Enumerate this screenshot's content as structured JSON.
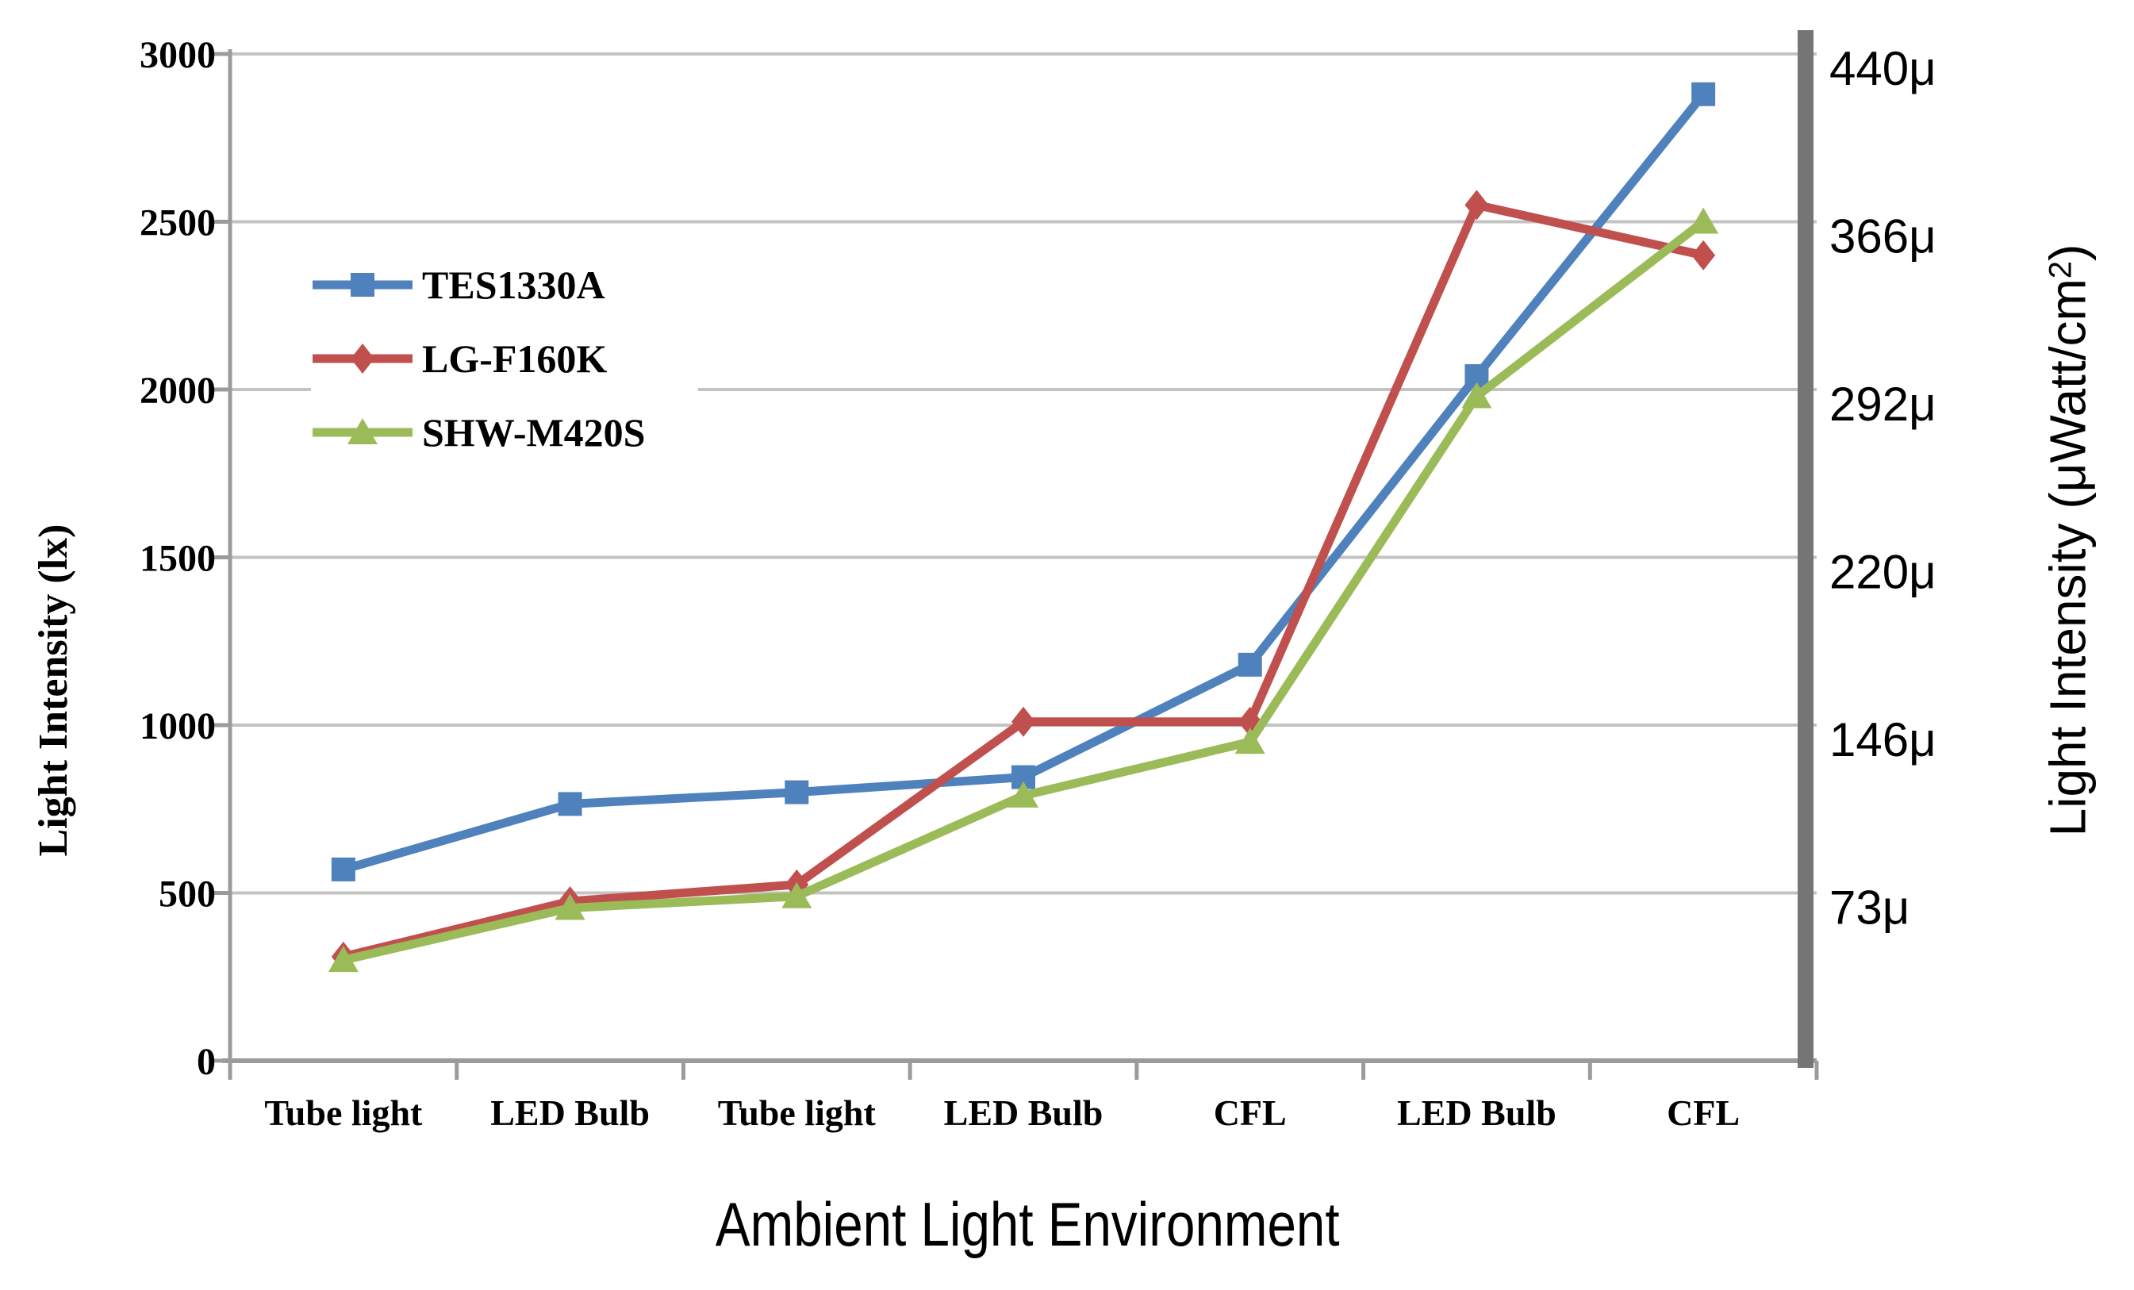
{
  "chart_data": {
    "type": "line",
    "categories": [
      "Tube light",
      "LED Bulb",
      "Tube light",
      "LED Bulb",
      "CFL",
      "LED Bulb",
      "CFL"
    ],
    "series": [
      {
        "name": "TES1330A",
        "marker": "square",
        "color": "#4F81BD",
        "values": [
          570,
          765,
          800,
          845,
          1180,
          2040,
          2880
        ]
      },
      {
        "name": "LG-F160K",
        "marker": "diamond",
        "color": "#C0504D",
        "values": [
          310,
          475,
          525,
          1010,
          1010,
          2550,
          2400
        ]
      },
      {
        "name": "SHW-M420S",
        "marker": "triangle",
        "color": "#9BBB59",
        "values": [
          300,
          455,
          490,
          790,
          950,
          1980,
          2500
        ]
      }
    ],
    "xlabel": "Ambient Light Environment",
    "ylabel_left": "Light Intensity (lx)",
    "ylabel_right": "Light Intensity (μWatt/cm²)",
    "right_title_pre": "Light Intensity (μWatt/cm",
    "right_title_sup": "2",
    "right_title_post": ")",
    "left_ticks": [
      0,
      500,
      1000,
      1500,
      2000,
      2500,
      3000
    ],
    "right_ticks": [
      {
        "label": "73μ",
        "at": 500
      },
      {
        "label": "146μ",
        "at": 1000
      },
      {
        "label": "220μ",
        "at": 1500
      },
      {
        "label": "292μ",
        "at": 2000
      },
      {
        "label": "366μ",
        "at": 2500
      },
      {
        "label": "440μ",
        "at": 3000
      }
    ],
    "ylim": [
      0,
      3000
    ],
    "grid": "horizontal",
    "legend_position": "inside-top-left",
    "palette": {
      "gridline": "#C3C3C3",
      "axis": "#9B9B9B",
      "secondary_axis_bar": "#757575",
      "text": "#000000",
      "background": "#FFFFFF"
    }
  }
}
